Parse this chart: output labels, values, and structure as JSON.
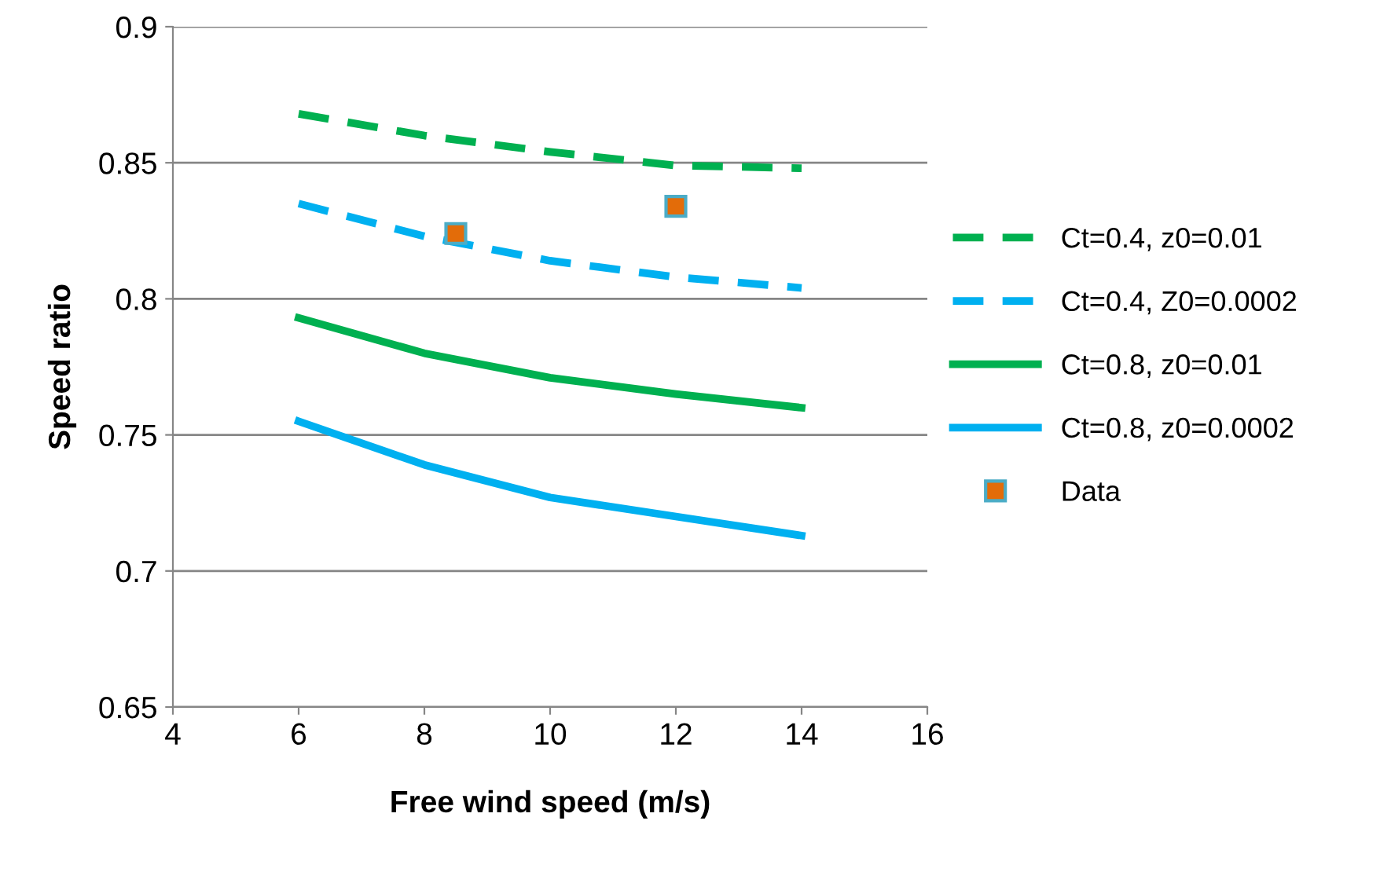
{
  "chart_data": {
    "type": "line",
    "xlabel": "Free wind speed (m/s)",
    "ylabel": "Speed ratio",
    "xlim": [
      4,
      16
    ],
    "xticks": [
      4,
      6,
      8,
      10,
      12,
      14,
      16
    ],
    "ylim": [
      0.65,
      0.9
    ],
    "yticks": [
      0.65,
      0.7,
      0.75,
      0.8,
      0.85,
      0.9
    ],
    "grid": "y",
    "legend": "right",
    "marker": "none",
    "series": [
      {
        "name": "Ct=0.4, z0=0.01",
        "color": "#00b050",
        "line_style": "dashed",
        "x": [
          6,
          8,
          10,
          12,
          14
        ],
        "values": [
          0.868,
          0.86,
          0.854,
          0.849,
          0.848
        ]
      },
      {
        "name": "Ct=0.4, Z0=0.0002",
        "color": "#00b0f0",
        "line_style": "dashed",
        "x": [
          6,
          8,
          10,
          12,
          14
        ],
        "values": [
          0.835,
          0.823,
          0.814,
          0.808,
          0.804
        ]
      },
      {
        "name": "Ct=0.8, z0=0.01",
        "color": "#00b050",
        "line_style": "solid",
        "x": [
          6,
          8,
          10,
          12,
          14
        ],
        "values": [
          0.793,
          0.78,
          0.771,
          0.765,
          0.76
        ]
      },
      {
        "name": "Ct=0.8, z0=0.0002",
        "color": "#00b0f0",
        "line_style": "solid",
        "x": [
          6,
          8,
          10,
          12,
          14
        ],
        "values": [
          0.755,
          0.739,
          0.727,
          0.72,
          0.713
        ]
      },
      {
        "name": "Data",
        "type": "scatter",
        "marker": "square",
        "color": "#e36c09",
        "x": [
          8.5,
          12
        ],
        "values": [
          0.824,
          0.834
        ]
      }
    ]
  }
}
